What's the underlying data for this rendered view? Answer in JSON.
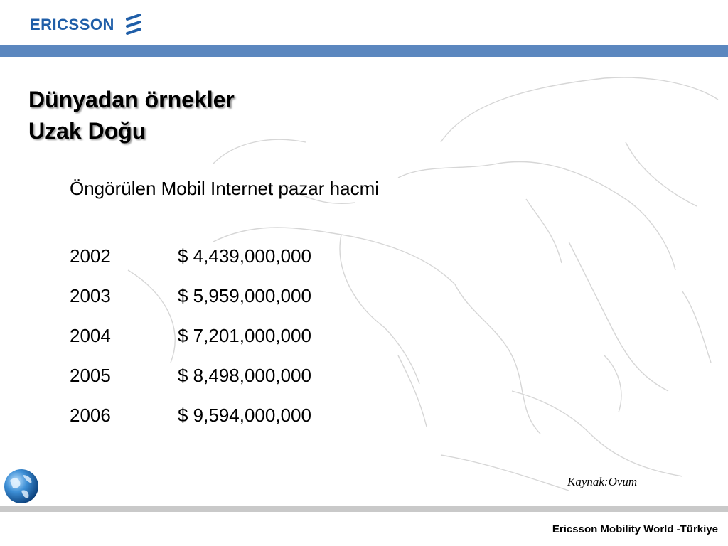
{
  "header": {
    "logo_text": "ERICSSON",
    "brand_color": "#1f5ea8",
    "bar_color": "#5b87bf"
  },
  "title": {
    "line1": "Dünyadan örnekler",
    "line2": "Uzak Doğu"
  },
  "subtitle": "Öngörülen Mobil Internet pazar hacmi",
  "rows": [
    {
      "year": "2002",
      "value": "$ 4,439,000,000"
    },
    {
      "year": "2003",
      "value": "$ 5,959,000,000"
    },
    {
      "year": "2004",
      "value": "$ 7,201,000,000"
    },
    {
      "year": "2005",
      "value": "$ 8,498,000,000"
    },
    {
      "year": "2006",
      "value": "$ 9,594,000,000"
    }
  ],
  "source": "Kaynak:Ovum",
  "footer": "Ericsson Mobility World -Türkiye",
  "icons": [
    "ericsson-logo-icon",
    "globe-icon",
    "asia-map-background"
  ]
}
